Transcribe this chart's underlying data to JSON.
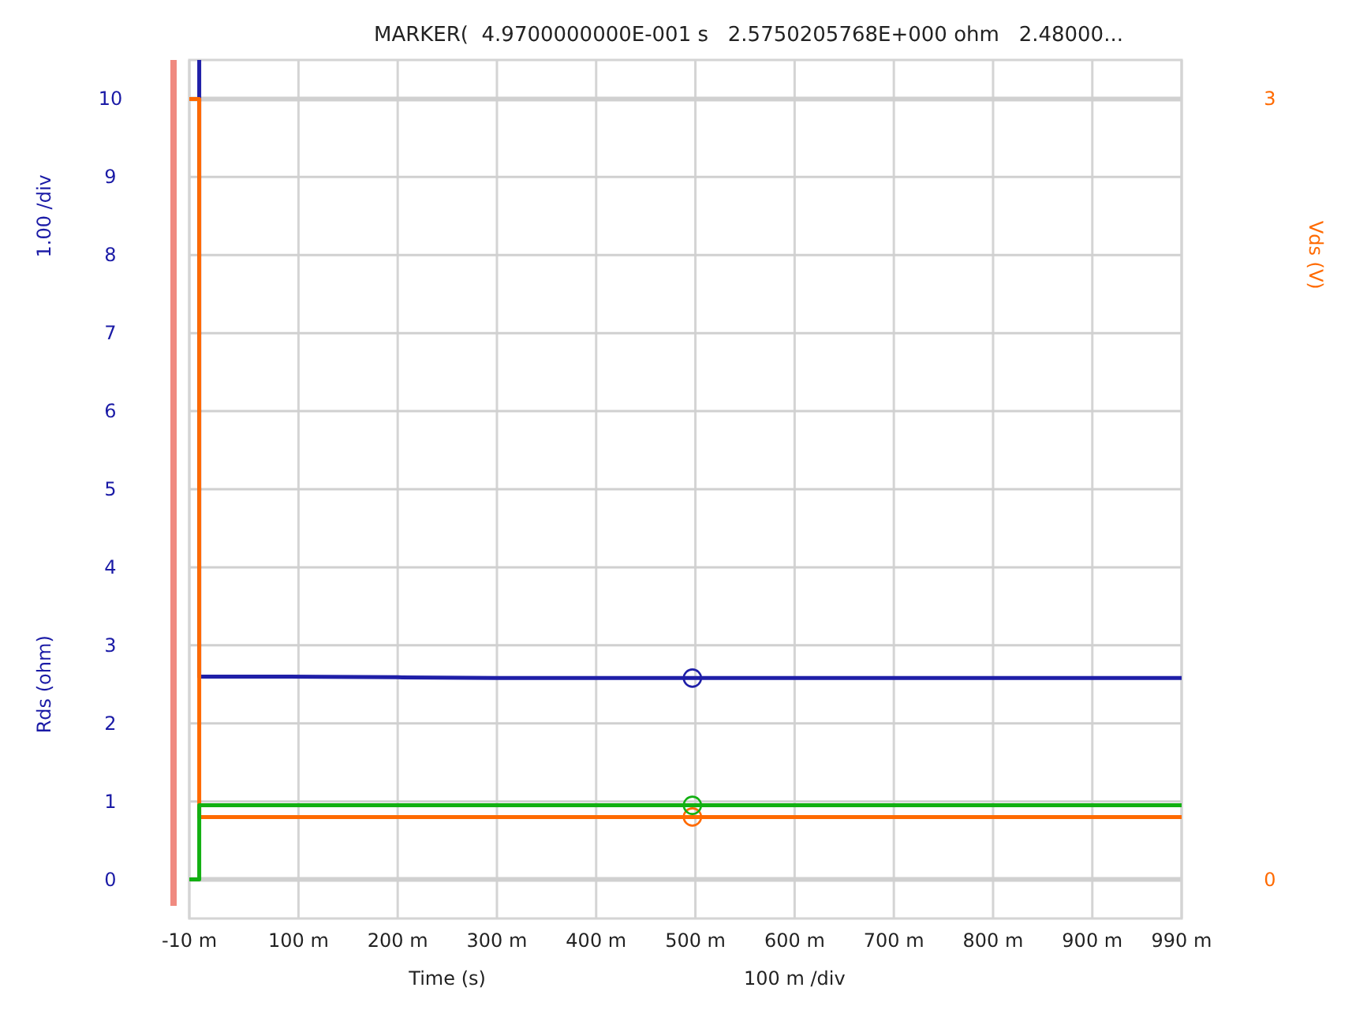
{
  "chart_data": {
    "type": "line",
    "title": "MARKER(  4.9700000000E-001 s   2.5750205768E+000 ohm   2.48000...",
    "xlabel": "Time (s)",
    "ylabel": "Rds (ohm)",
    "y2label": "Vds (V)",
    "annotations": [
      "1.00 /div",
      "100 m /div"
    ],
    "xlim": [
      -10,
      990
    ],
    "xticks": [
      {
        "value": -10,
        "label": "-10 m"
      },
      {
        "value": 100,
        "label": "100 m"
      },
      {
        "value": 200,
        "label": "200 m"
      },
      {
        "value": 300,
        "label": "300 m"
      },
      {
        "value": 400,
        "label": "400 m"
      },
      {
        "value": 500,
        "label": "500 m"
      },
      {
        "value": 600,
        "label": "600 m"
      },
      {
        "value": 700,
        "label": "700 m"
      },
      {
        "value": 800,
        "label": "800 m"
      },
      {
        "value": 900,
        "label": "900 m"
      },
      {
        "value": 990,
        "label": "990 m"
      }
    ],
    "ylim": [
      -0.5,
      10.5
    ],
    "yticks": [
      0,
      1,
      2,
      3,
      4,
      5,
      6,
      7,
      8,
      9,
      10
    ],
    "y2lim": [
      -0.15,
      3.15
    ],
    "y2ticks": [
      0,
      3
    ],
    "grid": true,
    "series": [
      {
        "color": "#1f1fa8",
        "x": [
          0,
          0,
          90,
          200,
          300,
          497,
          990
        ],
        "values": [
          10.5,
          2.6,
          2.6,
          2.59,
          2.58,
          2.58,
          2.58
        ]
      },
      {
        "color": "#ff6a00",
        "axis": "y2",
        "x": [
          -10,
          0,
          0,
          990
        ],
        "values": [
          3,
          3,
          0.24,
          0.24
        ]
      },
      {
        "color": "#12b012",
        "x": [
          -10,
          0,
          0,
          990
        ],
        "values": [
          0,
          0,
          0.95,
          0.95
        ]
      },
      {
        "type": "scatter",
        "marker": "circle",
        "color": "#1f1fa8",
        "x": [
          497
        ],
        "values": [
          2.58
        ]
      },
      {
        "type": "scatter",
        "marker": "circle",
        "axis": "y2",
        "color": "#ff6a00",
        "x": [
          497
        ],
        "values": [
          0.24
        ]
      },
      {
        "type": "scatter",
        "marker": "circle",
        "color": "#12b012",
        "x": [
          497
        ],
        "values": [
          0.95
        ]
      }
    ]
  }
}
